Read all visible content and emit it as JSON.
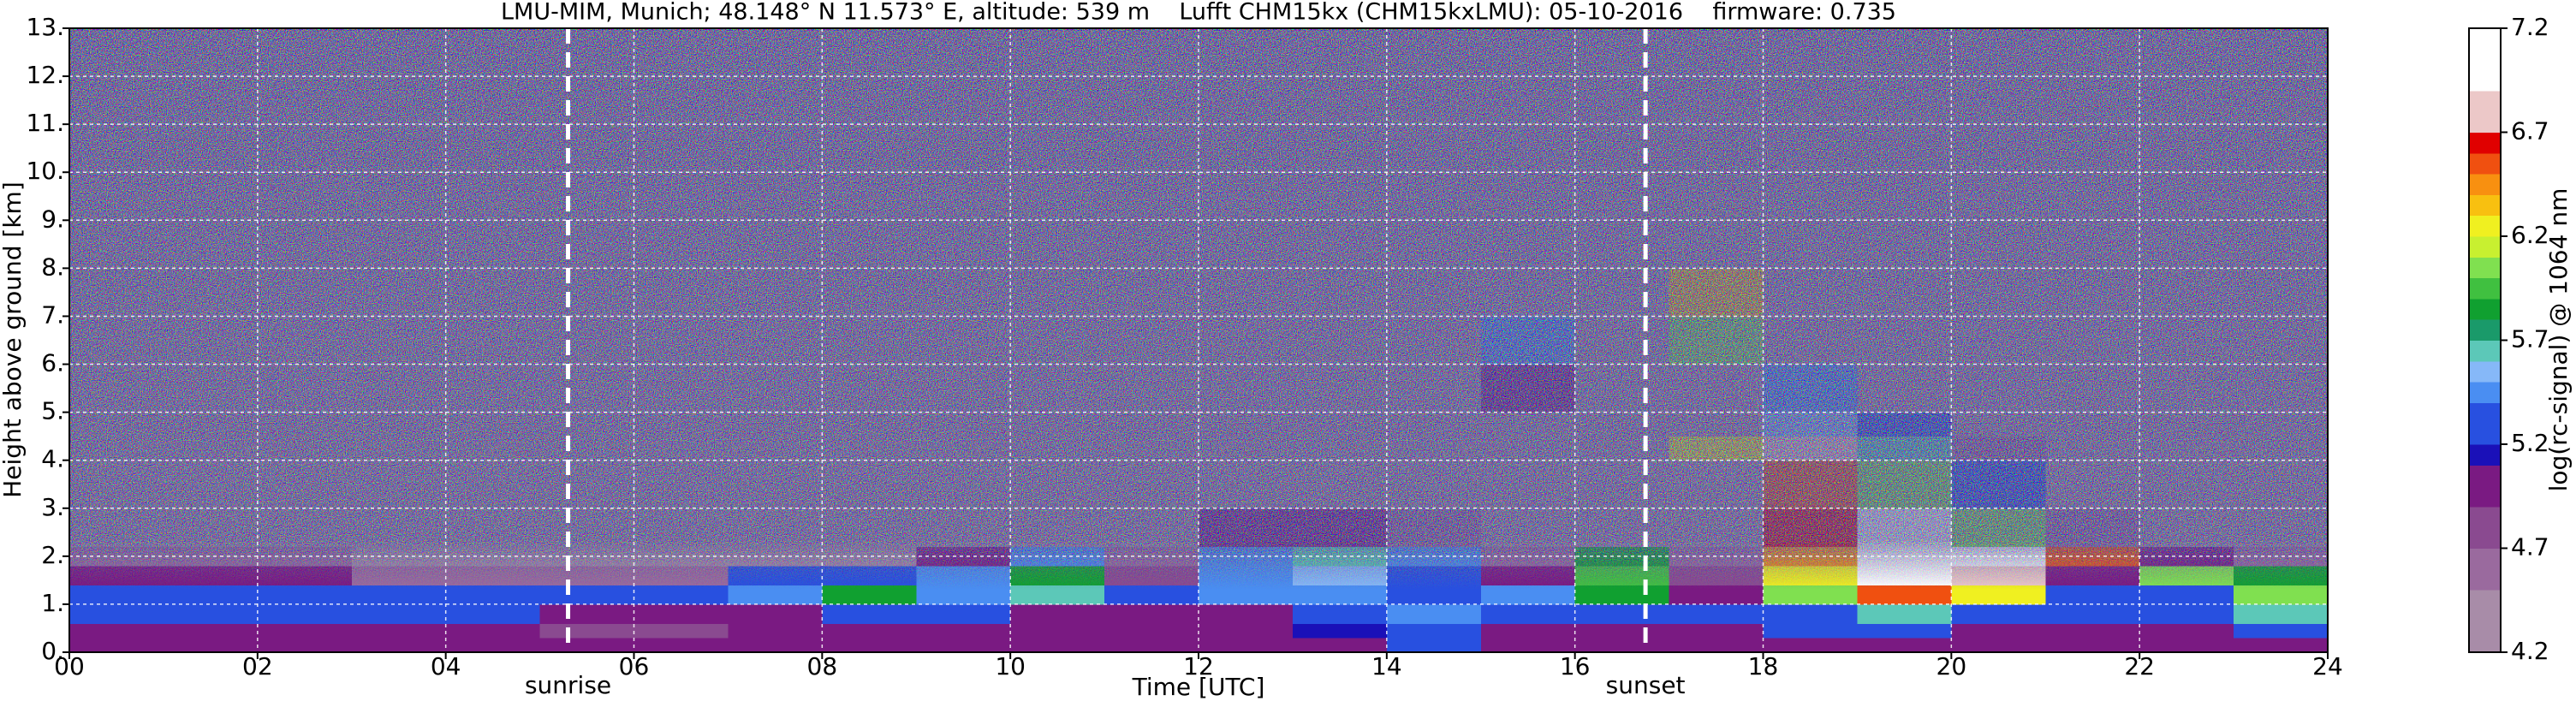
{
  "chart_data": {
    "type": "heatmap",
    "title": "LMU-MIM, Munich; 48.148° N 11.573° E, altitude: 539 m    Lufft CHM15kx (CHM15kxLMU): 05-10-2016    firmware: 0.735",
    "x_label": "Time [UTC]",
    "y_label": "Height above ground [km]",
    "xlim": [
      0,
      24
    ],
    "ylim": [
      0,
      13
    ],
    "xticks": [
      {
        "value": 0,
        "label": "00"
      },
      {
        "value": 2,
        "label": "02"
      },
      {
        "value": 4,
        "label": "04"
      },
      {
        "value": 6,
        "label": "06"
      },
      {
        "value": 8,
        "label": "08"
      },
      10,
      12,
      14,
      16,
      18,
      20,
      22,
      24
    ],
    "yticks": [
      {
        "value": 0,
        "label": "0."
      },
      {
        "value": 1,
        "label": "1."
      },
      {
        "value": 2,
        "label": "2."
      },
      {
        "value": 3,
        "label": "3."
      },
      {
        "value": 4,
        "label": "4."
      },
      {
        "value": 5,
        "label": "5."
      },
      {
        "value": 6,
        "label": "6."
      },
      {
        "value": 7,
        "label": "7."
      },
      {
        "value": 8,
        "label": "8."
      },
      {
        "value": 9,
        "label": "9."
      },
      {
        "value": 10,
        "label": "10."
      },
      {
        "value": 11,
        "label": "11."
      },
      {
        "value": 12,
        "label": "12."
      },
      {
        "value": 13,
        "label": "13."
      }
    ],
    "grid": true,
    "events": [
      {
        "x": 5.3,
        "label": "sunrise"
      },
      {
        "x": 16.75,
        "label": "sunset"
      }
    ],
    "x_edges": [
      0,
      1,
      2,
      3,
      4,
      5,
      6,
      7,
      8,
      9,
      10,
      11,
      12,
      13,
      14,
      15,
      16,
      17,
      18,
      19,
      20,
      21,
      22,
      23,
      24
    ],
    "y_edges": [
      0,
      0.3,
      0.6,
      1,
      1.4,
      1.8,
      2.2,
      3,
      4,
      4.5,
      5,
      6,
      7,
      8,
      13
    ],
    "z": [
      [
        5.0,
        5.0,
        5.0,
        5.0,
        5.0,
        4.9,
        4.9,
        4.9,
        5.0,
        5.0,
        5.0,
        5.0,
        5.0,
        5.0,
        5.3,
        5.0,
        5.0,
        5.0,
        5.0,
        5.0,
        5.0,
        5.0,
        5.0,
        5.0
      ],
      [
        5.0,
        5.0,
        5.0,
        5.0,
        5.0,
        4.8,
        4.8,
        4.9,
        5.0,
        5.0,
        5.0,
        5.0,
        5.0,
        5.1,
        5.3,
        5.0,
        5.0,
        5.0,
        5.3,
        5.3,
        5.0,
        5.0,
        5.0,
        5.3
      ],
      [
        5.3,
        5.3,
        5.3,
        5.3,
        5.3,
        4.9,
        4.9,
        5.0,
        5.3,
        5.3,
        5.0,
        5.0,
        5.0,
        5.3,
        5.4,
        5.2,
        5.2,
        5.3,
        5.3,
        5.6,
        5.3,
        5.3,
        5.3,
        5.6
      ],
      [
        5.3,
        5.3,
        5.3,
        5.3,
        5.3,
        5.2,
        5.2,
        5.4,
        5.8,
        5.4,
        5.6,
        5.3,
        5.4,
        5.4,
        5.3,
        5.4,
        5.8,
        5.0,
        6.0,
        6.5,
        6.2,
        5.3,
        5.2,
        6.0
      ],
      [
        5.0,
        5.0,
        5.0,
        4.6,
        4.6,
        4.6,
        4.6,
        5.2,
        5.2,
        5.4,
        5.8,
        4.8,
        5.4,
        5.5,
        5.3,
        5.0,
        5.9,
        4.7,
        6.2,
        7.0,
        6.8,
        5.0,
        6.0,
        5.8
      ],
      [
        4.5,
        4.5,
        4.5,
        4.4,
        4.4,
        4.4,
        4.4,
        4.4,
        4.4,
        5.0,
        5.4,
        4.6,
        5.4,
        5.6,
        5.4,
        4.6,
        5.8,
        4.5,
        6.4,
        7.1,
        7.0,
        6.5,
        5.0,
        4.6
      ],
      [
        4.4,
        4.4,
        4.4,
        4.4,
        4.4,
        4.4,
        4.4,
        4.4,
        4.4,
        4.4,
        4.4,
        4.4,
        5.0,
        5.0,
        4.5,
        4.4,
        4.4,
        4.4,
        6.6,
        7.1,
        6.0,
        4.5,
        4.4,
        4.4
      ],
      [
        4.3,
        4.3,
        4.3,
        4.3,
        4.3,
        4.3,
        4.3,
        4.3,
        4.3,
        4.3,
        4.3,
        4.3,
        4.3,
        4.3,
        4.3,
        4.3,
        4.3,
        4.4,
        6.5,
        6.0,
        5.2,
        4.3,
        4.3,
        4.3
      ],
      [
        4.3,
        4.3,
        4.3,
        4.3,
        4.3,
        4.3,
        4.3,
        4.3,
        4.3,
        4.3,
        4.3,
        4.3,
        4.3,
        4.3,
        4.3,
        4.3,
        4.3,
        6.2,
        6.8,
        5.6,
        4.5,
        4.3,
        4.3,
        4.3
      ],
      [
        4.3,
        4.3,
        4.3,
        4.3,
        4.3,
        4.3,
        4.3,
        4.3,
        4.3,
        4.3,
        4.3,
        4.3,
        4.3,
        4.3,
        4.3,
        4.3,
        4.3,
        4.3,
        5.5,
        5.2,
        4.3,
        4.3,
        4.3,
        4.3
      ],
      [
        4.3,
        4.3,
        4.3,
        4.3,
        4.3,
        4.3,
        4.3,
        4.3,
        4.3,
        4.3,
        4.3,
        4.3,
        4.3,
        4.3,
        4.3,
        5.0,
        4.3,
        4.3,
        5.4,
        4.3,
        4.3,
        4.3,
        4.3,
        4.3
      ],
      [
        4.3,
        4.3,
        4.3,
        4.3,
        4.3,
        4.3,
        4.3,
        4.3,
        4.3,
        4.3,
        4.3,
        4.3,
        4.3,
        4.3,
        4.3,
        5.4,
        4.3,
        6.0,
        4.3,
        4.3,
        4.3,
        4.3,
        4.3,
        4.3
      ],
      [
        4.3,
        4.3,
        4.3,
        4.3,
        4.3,
        4.3,
        4.3,
        4.3,
        4.3,
        4.3,
        4.3,
        4.3,
        4.3,
        4.3,
        4.3,
        4.3,
        4.3,
        6.3,
        4.3,
        4.3,
        4.3,
        4.3,
        4.3,
        4.3
      ],
      [
        4.3,
        4.3,
        4.3,
        4.3,
        4.3,
        4.3,
        4.3,
        4.3,
        4.3,
        4.3,
        4.3,
        4.3,
        4.3,
        4.3,
        4.3,
        4.3,
        4.3,
        4.3,
        4.3,
        4.3,
        4.3,
        4.3,
        4.3,
        4.3
      ]
    ],
    "colorbar": {
      "label": "log(rc-signal) @ 1064 nm",
      "lim": [
        4.2,
        7.2
      ],
      "ticks": [
        4.2,
        4.7,
        5.2,
        5.7,
        6.2,
        6.7,
        7.2
      ],
      "bounds": [
        4.2,
        4.5,
        4.7,
        4.9,
        5.1,
        5.2,
        5.4,
        5.5,
        5.6,
        5.7,
        5.8,
        5.9,
        6.0,
        6.1,
        6.2,
        6.3,
        6.4,
        6.5,
        6.6,
        6.7,
        6.9,
        7.2
      ],
      "colors": [
        "#a88ca8",
        "#9a6a9e",
        "#8a4a90",
        "#7a1a82",
        "#1a10b8",
        "#2850e0",
        "#4a8ef2",
        "#86b8f8",
        "#5cc8b8",
        "#1a9a6a",
        "#10a030",
        "#40c040",
        "#80e050",
        "#c8f030",
        "#f0f020",
        "#f8c010",
        "#f89010",
        "#f05010",
        "#e00000",
        "#ecc8c8",
        "#ffffff"
      ]
    }
  }
}
